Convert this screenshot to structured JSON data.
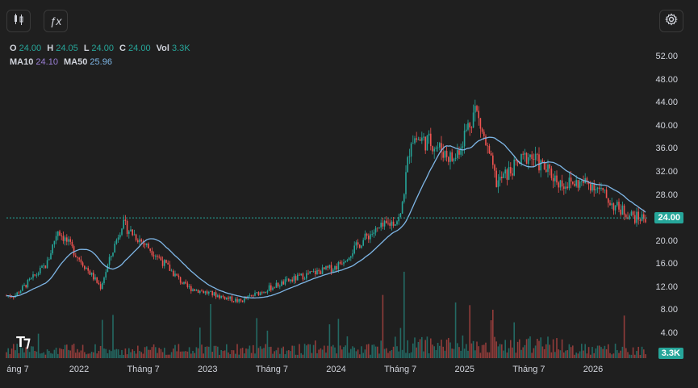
{
  "toolbar": {
    "candle_icon": "candlestick-icon",
    "fx_icon": "fx-indicator-icon",
    "fx_label": "ƒx",
    "settings_icon": "gear-icon"
  },
  "legend": {
    "o_label": "O",
    "o_value": "24.00",
    "h_label": "H",
    "h_value": "24.05",
    "l_label": "L",
    "l_value": "24.00",
    "c_label": "C",
    "c_value": "24.00",
    "vol_label": "Vol",
    "vol_value": "3.3K",
    "ma10_label": "MA10",
    "ma10_value": "24.10",
    "ma50_label": "MA50",
    "ma50_value": "25.96"
  },
  "colors": {
    "up": "#26a69a",
    "down": "#ef5350",
    "ma10": "#9b7fd6",
    "ma50": "#7eb6e6",
    "price_line": "#26a69a"
  },
  "chart_data": {
    "type": "candlestick",
    "y_axis_ticks": [
      "52.00",
      "48.00",
      "44.00",
      "40.00",
      "36.00",
      "32.00",
      "28.00",
      "20.00",
      "16.00",
      "12.00",
      "8.00",
      "4.00"
    ],
    "x_axis_ticks": [
      "áng 7",
      "2022",
      "Tháng 7",
      "2023",
      "Tháng 7",
      "2024",
      "Tháng 7",
      "2025",
      "Tháng 7",
      "2026"
    ],
    "last_price": "24.00",
    "last_volume": "3.3K",
    "close_series": {
      "x": [
        "2021-07",
        "2021-10",
        "2021-11",
        "2022-01",
        "2022-03",
        "2022-05",
        "2022-08",
        "2022-11",
        "2023-01",
        "2023-04",
        "2023-07",
        "2023-10",
        "2024-01",
        "2024-04",
        "2024-07",
        "2024-08",
        "2024-10",
        "2024-12",
        "2025-02",
        "2025-04",
        "2025-07",
        "2025-10",
        "2026-01",
        "2026-03",
        "2026-05"
      ],
      "y": [
        10.5,
        16,
        22,
        17,
        12,
        23,
        18,
        12,
        11,
        9.5,
        12,
        14,
        15.5,
        21,
        24,
        38,
        37,
        34,
        43,
        30,
        35,
        30,
        30,
        26,
        24
      ]
    },
    "ma10": "24.10",
    "ma50": "25.96"
  }
}
